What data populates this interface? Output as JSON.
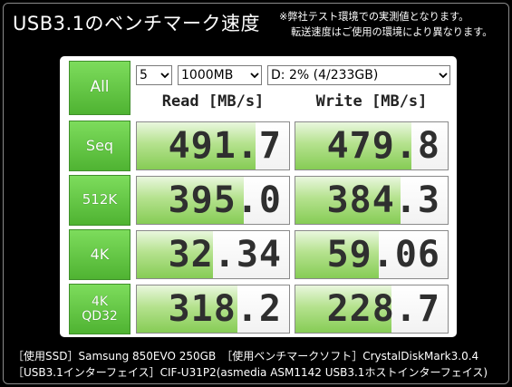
{
  "title": "USB3.1のベンチマーク速度",
  "note": {
    "line1": "※弊社テスト環境での実測値となります。",
    "line2": "転送速度はご使用の環境により異なります。"
  },
  "controls": {
    "all_button": "All",
    "test_count": "5",
    "test_size": "1000MB",
    "drive": "D: 2% (4/233GB)"
  },
  "headers": {
    "read": "Read [MB/s]",
    "write": "Write [MB/s]"
  },
  "tests": [
    {
      "label": "Seq",
      "read": "491.7",
      "write": "479.8",
      "read_fill": 0.78,
      "write_fill": 0.76
    },
    {
      "label": "512K",
      "read": "395.0",
      "write": "384.3",
      "read_fill": 0.7,
      "write_fill": 0.69
    },
    {
      "label": "4K",
      "read": "32.34",
      "write": "59.06",
      "read_fill": 0.5,
      "write_fill": 0.55
    },
    {
      "label_line1": "4K",
      "label_line2": "QD32",
      "read": "318.2",
      "write": "228.7",
      "read_fill": 0.66,
      "write_fill": 0.63
    }
  ],
  "info": {
    "line1": "［使用SSD］Samsung 850EVO 250GB　［使用ベンチマークソフト］CrystalDiskMark3.0.4",
    "line2": "［USB3.1インターフェイス］CIF-U31P2(asmedia ASM1142 USB3.1ホストインターフェイス)"
  }
}
